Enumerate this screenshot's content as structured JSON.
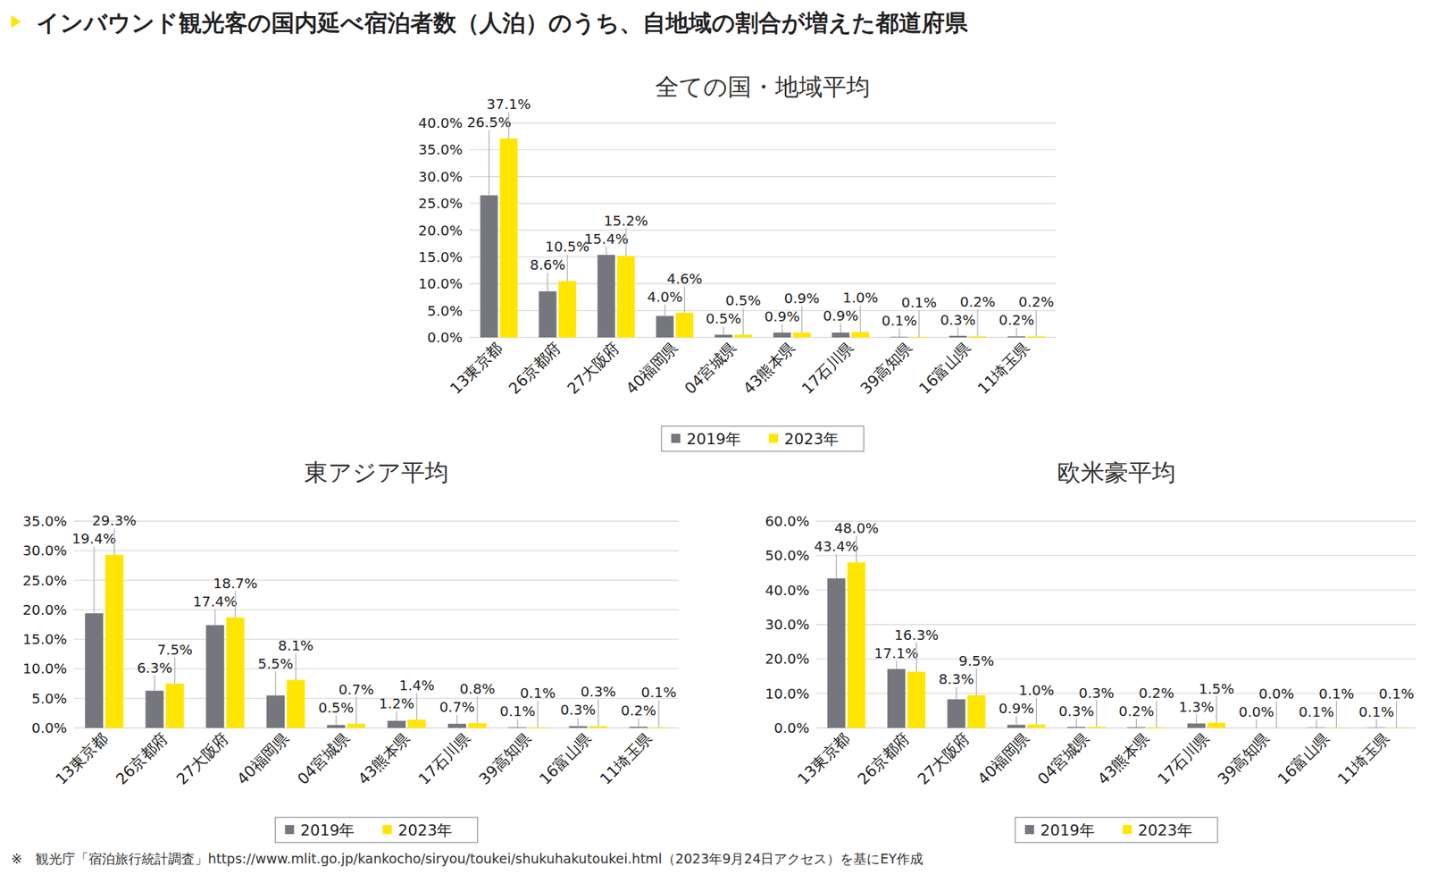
{
  "title": "インバウンド観光客の国内延べ宿泊者数（人泊）のうち、自地域の割合が増えた都道府県",
  "footnote": "※　観光庁「宿泊旅行統計調査」https://www.mlit.go.jp/kankocho/siryou/toukei/shukuhakutoukei.html（2023年9月24日アクセス）を基にEY作成",
  "chart_data": [
    {
      "type": "bar",
      "title": "全ての国・地域平均",
      "categories": [
        "13東京都",
        "26京都府",
        "27大阪府",
        "40福岡県",
        "04宮城県",
        "43熊本県",
        "17石川県",
        "39高知県",
        "16富山県",
        "11埼玉県"
      ],
      "series": [
        {
          "name": "2019年",
          "color": "#76767f",
          "values": [
            26.5,
            8.6,
            15.4,
            4.0,
            0.5,
            0.9,
            0.9,
            0.1,
            0.3,
            0.2
          ],
          "value_labels": [
            "26.5%",
            "8.6%",
            "15.4%",
            "4.0%",
            "0.5%",
            "0.9%",
            "0.9%",
            "0.1%",
            "0.3%",
            "0.2%"
          ]
        },
        {
          "name": "2023年",
          "color": "#ffe600",
          "values": [
            37.1,
            10.5,
            15.2,
            4.6,
            0.5,
            0.9,
            1.0,
            0.1,
            0.2,
            0.2
          ],
          "value_labels": [
            "37.1%",
            "10.5%",
            "15.2%",
            "4.6%",
            "0.5%",
            "0.9%",
            "1.0%",
            "0.1%",
            "0.2%",
            "0.2%"
          ]
        }
      ],
      "ylim": [
        0,
        40
      ],
      "yticks": [
        {
          "value": 0,
          "label": "0.0%"
        },
        {
          "value": 5,
          "label": "5.0%"
        },
        {
          "value": 10,
          "label": "10.0%"
        },
        {
          "value": 15,
          "label": "15.0%"
        },
        {
          "value": 20,
          "label": "20.0%"
        },
        {
          "value": 25,
          "label": "25.0%"
        },
        {
          "value": 30,
          "label": "30.0%"
        },
        {
          "value": 35,
          "label": "35.0%"
        },
        {
          "value": 40,
          "label": "40.0%"
        }
      ],
      "grid": true,
      "legend": "bottom",
      "data_labels": true
    },
    {
      "type": "bar",
      "title": "東アジア平均",
      "categories": [
        "13東京都",
        "26京都府",
        "27大阪府",
        "40福岡県",
        "04宮城県",
        "43熊本県",
        "17石川県",
        "39高知県",
        "16富山県",
        "11埼玉県"
      ],
      "series": [
        {
          "name": "2019年",
          "color": "#76767f",
          "values": [
            19.4,
            6.3,
            17.4,
            5.5,
            0.5,
            1.2,
            0.7,
            0.1,
            0.3,
            0.2
          ],
          "value_labels": [
            "19.4%",
            "6.3%",
            "17.4%",
            "5.5%",
            "0.5%",
            "1.2%",
            "0.7%",
            "0.1%",
            "0.3%",
            "0.2%"
          ]
        },
        {
          "name": "2023年",
          "color": "#ffe600",
          "values": [
            29.3,
            7.5,
            18.7,
            8.1,
            0.7,
            1.4,
            0.8,
            0.1,
            0.3,
            0.1
          ],
          "value_labels": [
            "29.3%",
            "7.5%",
            "18.7%",
            "8.1%",
            "0.7%",
            "1.4%",
            "0.8%",
            "0.1%",
            "0.3%",
            "0.1%"
          ]
        }
      ],
      "ylim": [
        0,
        35
      ],
      "yticks": [
        {
          "value": 0,
          "label": "0.0%"
        },
        {
          "value": 5,
          "label": "5.0%"
        },
        {
          "value": 10,
          "label": "10.0%"
        },
        {
          "value": 15,
          "label": "15.0%"
        },
        {
          "value": 20,
          "label": "20.0%"
        },
        {
          "value": 25,
          "label": "25.0%"
        },
        {
          "value": 30,
          "label": "30.0%"
        },
        {
          "value": 35,
          "label": "35.0%"
        }
      ],
      "grid": true,
      "legend": "bottom",
      "data_labels": true
    },
    {
      "type": "bar",
      "title": "欧米豪平均",
      "categories": [
        "13東京都",
        "26京都府",
        "27大阪府",
        "40福岡県",
        "04宮城県",
        "43熊本県",
        "17石川県",
        "39高知県",
        "16富山県",
        "11埼玉県"
      ],
      "series": [
        {
          "name": "2019年",
          "color": "#76767f",
          "values": [
            43.4,
            17.1,
            8.3,
            0.9,
            0.3,
            0.2,
            1.3,
            0.0,
            0.1,
            0.1
          ],
          "value_labels": [
            "43.4%",
            "17.1%",
            "8.3%",
            "0.9%",
            "0.3%",
            "0.2%",
            "1.3%",
            "0.0%",
            "0.1%",
            "0.1%"
          ]
        },
        {
          "name": "2023年",
          "color": "#ffe600",
          "values": [
            48.0,
            16.3,
            9.5,
            1.0,
            0.3,
            0.2,
            1.5,
            0.0,
            0.1,
            0.1
          ],
          "value_labels": [
            "48.0%",
            "16.3%",
            "9.5%",
            "1.0%",
            "0.3%",
            "0.2%",
            "1.5%",
            "0.0%",
            "0.1%",
            "0.1%"
          ]
        }
      ],
      "ylim": [
        0,
        60
      ],
      "yticks": [
        {
          "value": 0,
          "label": "0.0%"
        },
        {
          "value": 10,
          "label": "10.0%"
        },
        {
          "value": 20,
          "label": "20.0%"
        },
        {
          "value": 30,
          "label": "30.0%"
        },
        {
          "value": 40,
          "label": "40.0%"
        },
        {
          "value": 50,
          "label": "50.0%"
        },
        {
          "value": 60,
          "label": "60.0%"
        }
      ],
      "grid": true,
      "legend": "bottom",
      "data_labels": true
    }
  ]
}
